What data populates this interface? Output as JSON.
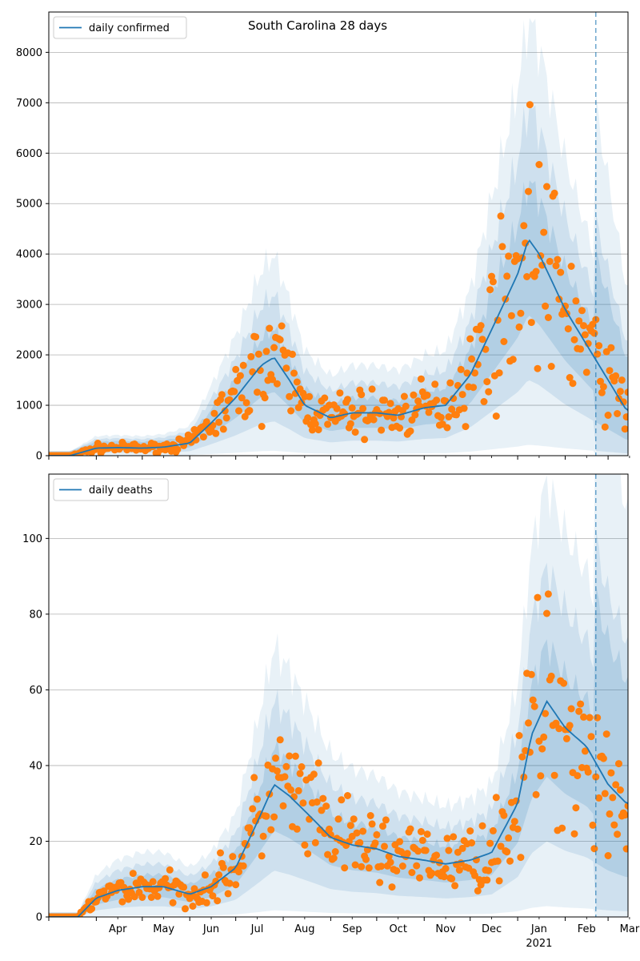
{
  "title": "South Carolina 28 days",
  "colors": {
    "line": "#1f77b4",
    "band": "#1f77b4",
    "points": "#ff7f0e",
    "grid": "#b0b0b0",
    "vline": "#1f77b4"
  },
  "x_axis": {
    "month_labels": [
      "Apr",
      "May",
      "Jun",
      "Jul",
      "Aug",
      "Sep",
      "Oct",
      "Nov",
      "Dec",
      "Jan",
      "Feb",
      "Mar"
    ],
    "year_label": "2021",
    "forecast_start": "2021-02-21"
  },
  "chart_data": [
    {
      "type": "line",
      "legend": "daily confirmed",
      "ylim": [
        0,
        8800
      ],
      "yticks": [
        0,
        1000,
        2000,
        3000,
        4000,
        5000,
        6000,
        7000,
        8000
      ],
      "grid": true,
      "legend_position": "top-left",
      "x": [
        "2020-03-01",
        "2020-03-15",
        "2020-04-01",
        "2020-04-15",
        "2020-05-01",
        "2020-05-15",
        "2020-06-01",
        "2020-06-15",
        "2020-07-01",
        "2020-07-10",
        "2020-07-18",
        "2020-07-26",
        "2020-08-05",
        "2020-08-15",
        "2020-09-01",
        "2020-09-15",
        "2020-10-01",
        "2020-10-15",
        "2020-11-01",
        "2020-11-15",
        "2020-12-01",
        "2020-12-15",
        "2021-01-01",
        "2021-01-08",
        "2021-01-15",
        "2021-02-01",
        "2021-02-15",
        "2021-03-01",
        "2021-03-13"
      ],
      "values": [
        0,
        0,
        150,
        160,
        150,
        170,
        250,
        650,
        1150,
        1500,
        1800,
        1950,
        1500,
        1000,
        750,
        850,
        850,
        800,
        950,
        1000,
        1600,
        2500,
        3600,
        4300,
        4000,
        2900,
        2200,
        1500,
        900
      ]
    },
    {
      "type": "line",
      "legend": "daily deaths",
      "ylim": [
        0,
        117
      ],
      "yticks": [
        0,
        20,
        40,
        60,
        80,
        100
      ],
      "grid": true,
      "legend_position": "top-left",
      "x": [
        "2020-03-01",
        "2020-03-20",
        "2020-04-01",
        "2020-04-15",
        "2020-05-01",
        "2020-05-15",
        "2020-06-01",
        "2020-06-15",
        "2020-07-01",
        "2020-07-15",
        "2020-07-26",
        "2020-08-05",
        "2020-08-20",
        "2020-09-01",
        "2020-09-15",
        "2020-10-01",
        "2020-10-15",
        "2020-11-01",
        "2020-11-15",
        "2020-12-01",
        "2020-12-15",
        "2021-01-01",
        "2021-01-10",
        "2021-01-20",
        "2021-02-01",
        "2021-02-15",
        "2021-03-01",
        "2021-03-13"
      ],
      "values": [
        0,
        0,
        5,
        7,
        8,
        8,
        6,
        8,
        13,
        25,
        35,
        32,
        26,
        21,
        19,
        18,
        16,
        15,
        14,
        15,
        17,
        30,
        48,
        57,
        50,
        45,
        35,
        30
      ]
    }
  ]
}
